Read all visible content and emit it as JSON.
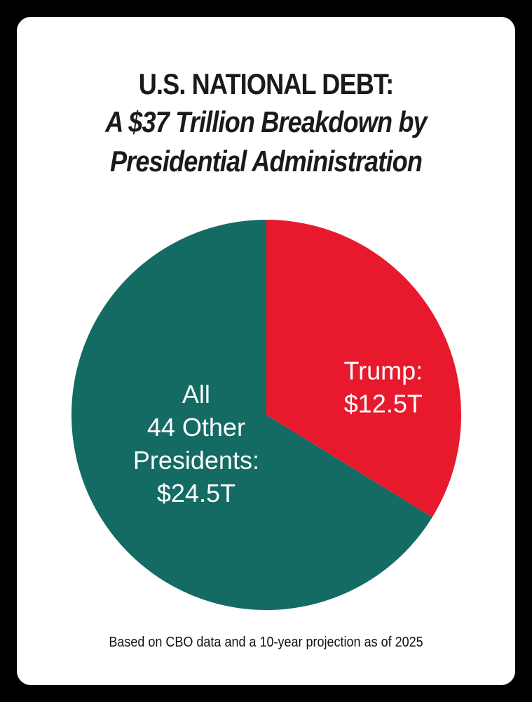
{
  "title": "U.S. NATIONAL DEBT:",
  "subtitle_line1": "A $37 Trillion Breakdown by",
  "subtitle_line2": "Presidential Administration",
  "footnote": "Based on CBO data and a 10-year projection as of 2025",
  "chart_data": {
    "type": "pie",
    "title": "U.S. NATIONAL DEBT: A $37 Trillion Breakdown by Presidential Administration",
    "total": 37,
    "slices": [
      {
        "name": "Trump",
        "value": 12.5,
        "label_lines": [
          "Trump:",
          "$12.5T"
        ],
        "color": "#e8192c"
      },
      {
        "name": "All 44 Other Presidents",
        "value": 24.5,
        "label_lines": [
          "All",
          "44 Other",
          "Presidents:",
          "$24.5T"
        ],
        "color": "#136b63"
      }
    ]
  }
}
